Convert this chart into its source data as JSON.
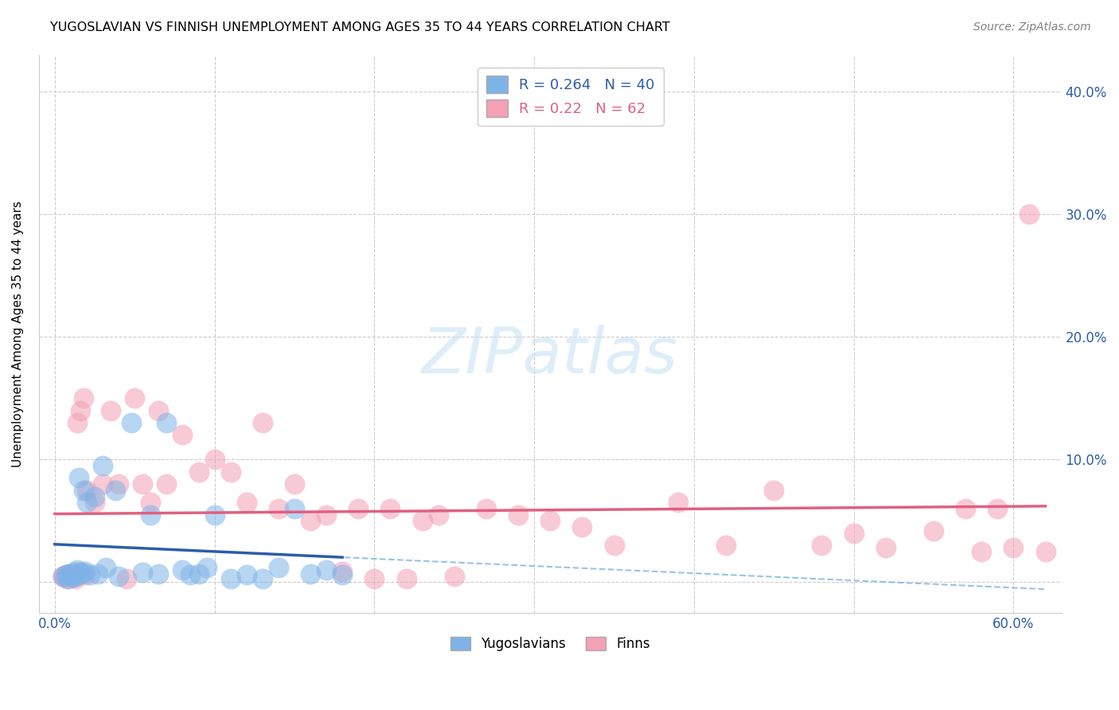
{
  "title": "YUGOSLAVIAN VS FINNISH UNEMPLOYMENT AMONG AGES 35 TO 44 YEARS CORRELATION CHART",
  "source": "Source: ZipAtlas.com",
  "ylabel": "Unemployment Among Ages 35 to 44 years",
  "xlim": [
    -0.01,
    0.63
  ],
  "ylim": [
    -0.025,
    0.43
  ],
  "yug_R": 0.264,
  "yug_N": 40,
  "finn_R": 0.22,
  "finn_N": 62,
  "yug_color": "#7EB3E8",
  "finn_color": "#F4A0B5",
  "yug_line_color": "#2B5DAA",
  "finn_line_color": "#E06080",
  "background_color": "#ffffff",
  "grid_color": "#cccccc",
  "yug_x": [
    0.005,
    0.007,
    0.008,
    0.009,
    0.01,
    0.011,
    0.012,
    0.013,
    0.014,
    0.015,
    0.016,
    0.017,
    0.018,
    0.019,
    0.02,
    0.022,
    0.025,
    0.027,
    0.03,
    0.032,
    0.038,
    0.04,
    0.048,
    0.055,
    0.06,
    0.065,
    0.07,
    0.08,
    0.085,
    0.09,
    0.095,
    0.1,
    0.11,
    0.12,
    0.13,
    0.14,
    0.15,
    0.16,
    0.17,
    0.18
  ],
  "yug_y": [
    0.005,
    0.006,
    0.003,
    0.007,
    0.006,
    0.004,
    0.008,
    0.005,
    0.01,
    0.085,
    0.007,
    0.008,
    0.075,
    0.009,
    0.065,
    0.006,
    0.07,
    0.007,
    0.095,
    0.012,
    0.075,
    0.005,
    0.13,
    0.008,
    0.055,
    0.007,
    0.13,
    0.01,
    0.006,
    0.007,
    0.012,
    0.055,
    0.003,
    0.006,
    0.003,
    0.012,
    0.06,
    0.007,
    0.01,
    0.006
  ],
  "finn_x": [
    0.005,
    0.006,
    0.007,
    0.008,
    0.009,
    0.01,
    0.011,
    0.012,
    0.013,
    0.014,
    0.015,
    0.016,
    0.017,
    0.018,
    0.019,
    0.02,
    0.025,
    0.03,
    0.035,
    0.04,
    0.045,
    0.05,
    0.055,
    0.06,
    0.065,
    0.07,
    0.08,
    0.09,
    0.1,
    0.11,
    0.12,
    0.13,
    0.14,
    0.15,
    0.16,
    0.17,
    0.18,
    0.19,
    0.2,
    0.21,
    0.22,
    0.23,
    0.24,
    0.25,
    0.27,
    0.29,
    0.31,
    0.33,
    0.35,
    0.39,
    0.42,
    0.45,
    0.48,
    0.5,
    0.52,
    0.55,
    0.57,
    0.58,
    0.59,
    0.6,
    0.61,
    0.62
  ],
  "finn_y": [
    0.005,
    0.004,
    0.006,
    0.003,
    0.007,
    0.005,
    0.004,
    0.006,
    0.003,
    0.13,
    0.008,
    0.14,
    0.007,
    0.15,
    0.006,
    0.075,
    0.065,
    0.08,
    0.14,
    0.08,
    0.003,
    0.15,
    0.08,
    0.065,
    0.14,
    0.08,
    0.12,
    0.09,
    0.1,
    0.09,
    0.065,
    0.13,
    0.06,
    0.08,
    0.05,
    0.055,
    0.009,
    0.06,
    0.003,
    0.06,
    0.003,
    0.05,
    0.055,
    0.005,
    0.06,
    0.055,
    0.05,
    0.045,
    0.03,
    0.065,
    0.03,
    0.075,
    0.03,
    0.04,
    0.028,
    0.042,
    0.06,
    0.025,
    0.06,
    0.028,
    0.3,
    0.025
  ]
}
